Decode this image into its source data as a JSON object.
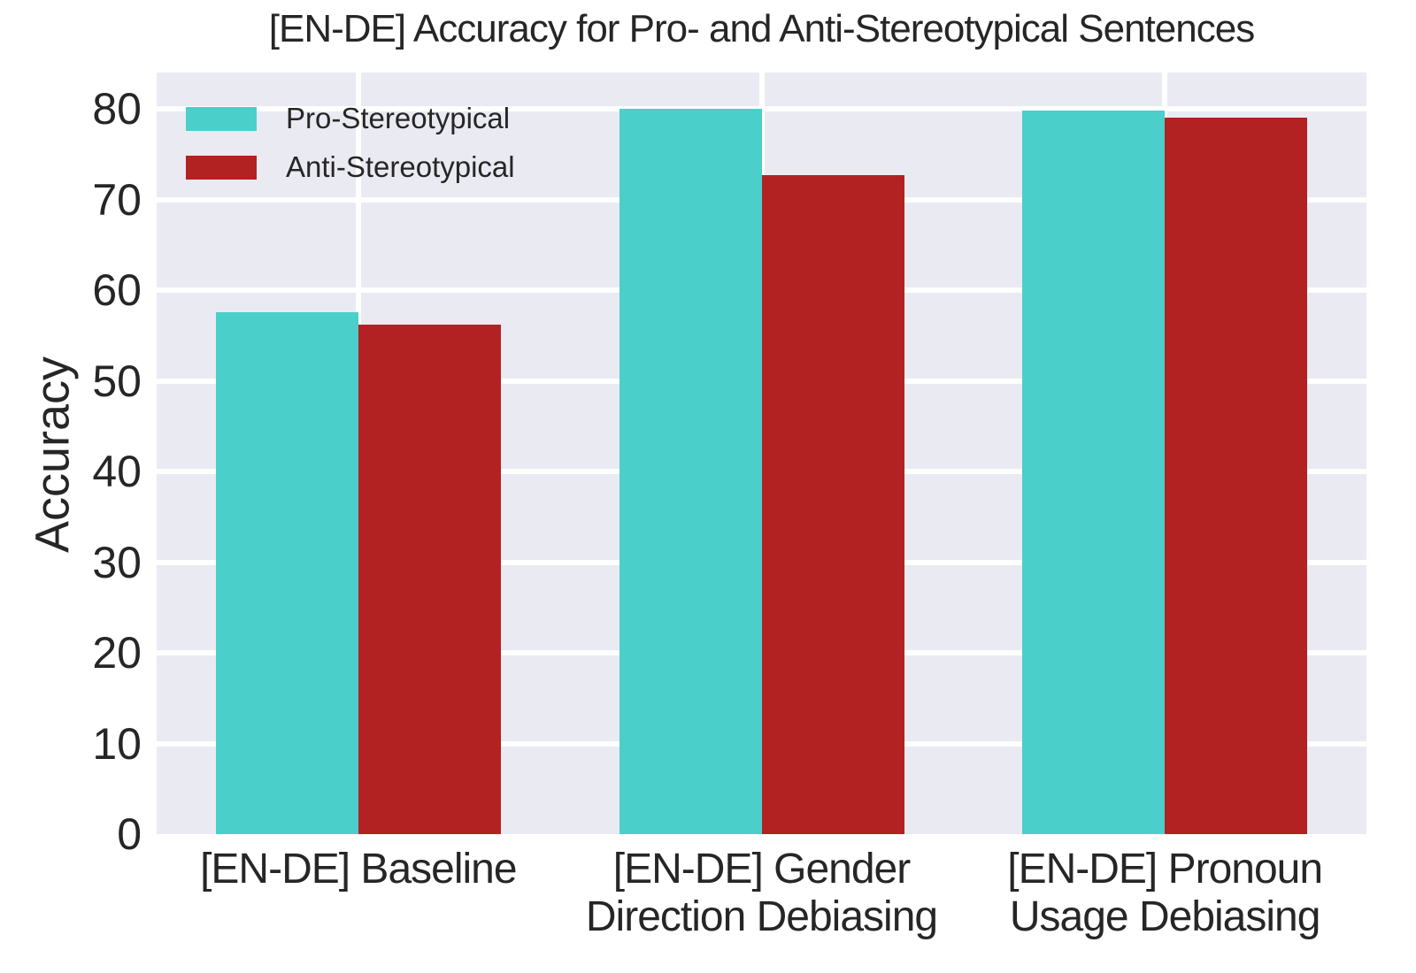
{
  "chart_data": {
    "type": "bar",
    "title": "[EN-DE] Accuracy for Pro- and Anti-Stereotypical Sentences",
    "xlabel": "",
    "ylabel": "Accuracy",
    "ylim": [
      0,
      84
    ],
    "yticks": [
      0,
      10,
      20,
      30,
      40,
      50,
      60,
      70,
      80
    ],
    "grid": true,
    "plot_background": "#EAEAF2",
    "gridline_color": "#FFFFFF",
    "text_color": "#262626",
    "legend_position": "upper-left",
    "categories": [
      [
        "[EN-DE] Baseline"
      ],
      [
        "[EN-DE] Gender",
        "Direction Debiasing"
      ],
      [
        "[EN-DE] Pronoun",
        "Usage Debiasing"
      ]
    ],
    "series": [
      {
        "name": "Pro-Stereotypical",
        "color": "#4ACFCA",
        "values": [
          57.6,
          80.0,
          79.8
        ]
      },
      {
        "name": "Anti-Stereotypical",
        "color": "#B22222",
        "values": [
          56.2,
          72.7,
          79.0
        ]
      }
    ]
  }
}
